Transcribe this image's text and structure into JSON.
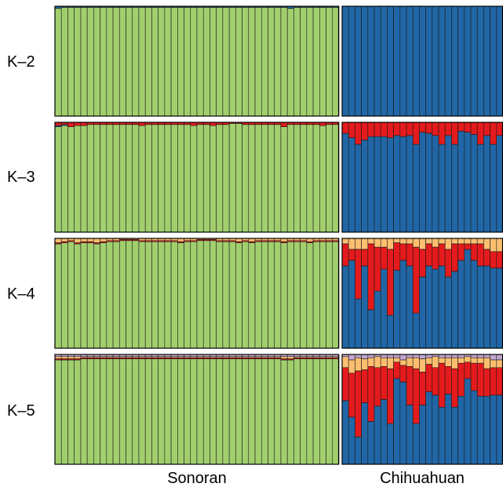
{
  "chart_data": {
    "type": "bar",
    "stacked": true,
    "normalized": true,
    "ylim": [
      0,
      1
    ],
    "colors": {
      "cluster1": "#a2cf6e",
      "cluster2": "#2166a6",
      "cluster3": "#e41a1c",
      "cluster4": "#fdbf6f",
      "cluster5": "#c2a5cf",
      "bar_stroke": "#1a1a1a",
      "panel_border": "#000000"
    },
    "groups": [
      {
        "label": "Sonoran",
        "n": 44
      },
      {
        "label": "Chihuahuan",
        "n": 25
      }
    ],
    "panels": [
      {
        "label": "K–2",
        "sonoran": {
          "blue": [
            0.02,
            0.01,
            0.01,
            0.01,
            0.01,
            0.01,
            0.01,
            0.01,
            0.01,
            0.01,
            0.01,
            0.01,
            0.01,
            0.01,
            0.01,
            0.01,
            0.01,
            0.01,
            0.01,
            0.01,
            0.01,
            0.01,
            0.01,
            0.01,
            0.01,
            0.01,
            0.01,
            0.01,
            0.01,
            0.01,
            0.01,
            0.01,
            0.01,
            0.01,
            0.01,
            0.01,
            0.02,
            0.01,
            0.01,
            0.01,
            0.01,
            0.01,
            0.01,
            0.01
          ]
        },
        "chihuahuan": {
          "green": [
            0,
            0,
            0,
            0,
            0,
            0,
            0,
            0,
            0,
            0,
            0,
            0,
            0,
            0,
            0,
            0,
            0,
            0,
            0,
            0,
            0,
            0,
            0,
            0,
            0
          ]
        }
      },
      {
        "label": "K–3",
        "sonoran": {
          "red": [
            0.03,
            0.02,
            0.04,
            0.03,
            0.03,
            0.02,
            0.02,
            0.02,
            0.02,
            0.02,
            0.02,
            0.02,
            0.02,
            0.03,
            0.02,
            0.02,
            0.02,
            0.02,
            0.02,
            0.02,
            0.02,
            0.03,
            0.02,
            0.02,
            0.03,
            0.02,
            0.02,
            0.01,
            0.01,
            0.02,
            0.02,
            0.02,
            0.02,
            0.02,
            0.02,
            0.04,
            0.02,
            0.02,
            0.02,
            0.02,
            0.02,
            0.03,
            0.02,
            0.02
          ],
          "blue": [
            0.01,
            0.01,
            0,
            0,
            0,
            0,
            0,
            0,
            0,
            0,
            0,
            0,
            0,
            0,
            0,
            0,
            0,
            0,
            0,
            0,
            0,
            0,
            0,
            0,
            0,
            0,
            0,
            0,
            0,
            0,
            0,
            0,
            0,
            0,
            0,
            0,
            0,
            0,
            0,
            0,
            0,
            0,
            0,
            0
          ]
        },
        "chihuahuan": {
          "red": [
            0.1,
            0.14,
            0.2,
            0.16,
            0.13,
            0.13,
            0.13,
            0.14,
            0.12,
            0.13,
            0.12,
            0.2,
            0.09,
            0.1,
            0.12,
            0.2,
            0.12,
            0.2,
            0.08,
            0.09,
            0.11,
            0.2,
            0.12,
            0.2,
            0.12
          ],
          "green": [
            0,
            0,
            0,
            0,
            0,
            0,
            0,
            0,
            0,
            0,
            0,
            0,
            0,
            0,
            0,
            0,
            0,
            0,
            0,
            0,
            0,
            0,
            0,
            0,
            0
          ]
        }
      },
      {
        "label": "K–4",
        "sonoran": {
          "orange": [
            0.04,
            0.03,
            0.02,
            0.04,
            0.03,
            0.03,
            0.04,
            0.03,
            0.02,
            0.02,
            0.01,
            0.01,
            0.01,
            0.02,
            0.02,
            0.02,
            0.02,
            0.02,
            0.02,
            0.03,
            0.02,
            0.02,
            0.01,
            0.01,
            0.01,
            0.02,
            0.02,
            0.02,
            0.03,
            0.02,
            0.03,
            0.02,
            0.02,
            0.02,
            0.02,
            0.03,
            0.02,
            0.02,
            0.02,
            0.03,
            0.02,
            0.02,
            0.02,
            0.02
          ],
          "red": [
            0.01,
            0.01,
            0.01,
            0.01,
            0.01,
            0.01,
            0.01,
            0.01,
            0.01,
            0.01,
            0.01,
            0.01,
            0.01,
            0.01,
            0.01,
            0.01,
            0.01,
            0.01,
            0.01,
            0.01,
            0.01,
            0.01,
            0.01,
            0.01,
            0.01,
            0.01,
            0.01,
            0.01,
            0.01,
            0.01,
            0.01,
            0.01,
            0.01,
            0.01,
            0.01,
            0.01,
            0.01,
            0.01,
            0.01,
            0.01,
            0.01,
            0.01,
            0.01,
            0.01
          ],
          "blue": [
            0,
            0,
            0,
            0,
            0,
            0,
            0,
            0,
            0,
            0,
            0,
            0,
            0,
            0,
            0,
            0,
            0,
            0,
            0,
            0,
            0,
            0,
            0,
            0,
            0,
            0,
            0,
            0,
            0,
            0,
            0,
            0,
            0,
            0,
            0,
            0,
            0,
            0,
            0,
            0,
            0,
            0,
            0,
            0
          ]
        },
        "chihuahuan": {
          "orange": [
            0.05,
            0.1,
            0.1,
            0.1,
            0.05,
            0.08,
            0.08,
            0.1,
            0.04,
            0.05,
            0.05,
            0.08,
            0.1,
            0.05,
            0.08,
            0.05,
            0.1,
            0.05,
            0.05,
            0.05,
            0.05,
            0.05,
            0.1,
            0.12,
            0.12
          ],
          "red": [
            0.2,
            0.1,
            0.45,
            0.15,
            0.6,
            0.4,
            0.2,
            0.6,
            0.25,
            0.15,
            0.2,
            0.6,
            0.25,
            0.2,
            0.2,
            0.2,
            0.25,
            0.25,
            0.15,
            0.05,
            0.15,
            0.2,
            0.15,
            0.15,
            0.15
          ],
          "green": [
            0,
            0,
            0,
            0,
            0,
            0,
            0,
            0,
            0,
            0,
            0,
            0,
            0,
            0,
            0,
            0,
            0,
            0,
            0,
            0,
            0,
            0,
            0,
            0,
            0
          ]
        }
      },
      {
        "label": "K–5",
        "sonoran": {
          "purple": [
            0.02,
            0.02,
            0.02,
            0.02,
            0.02,
            0.02,
            0.02,
            0.02,
            0.02,
            0.02,
            0.02,
            0.02,
            0.02,
            0.02,
            0.02,
            0.02,
            0.02,
            0.02,
            0.02,
            0.02,
            0.02,
            0.02,
            0.02,
            0.02,
            0.02,
            0.02,
            0.02,
            0.02,
            0.02,
            0.02,
            0.02,
            0.02,
            0.02,
            0.02,
            0.02,
            0.02,
            0.02,
            0.02,
            0.02,
            0.02,
            0.02,
            0.02,
            0.02,
            0.02
          ],
          "orange": [
            0.02,
            0.02,
            0.02,
            0.02,
            0.01,
            0.01,
            0.01,
            0.01,
            0.01,
            0.01,
            0.01,
            0.01,
            0.01,
            0.01,
            0.01,
            0.01,
            0.01,
            0.01,
            0.01,
            0.01,
            0.01,
            0.01,
            0.01,
            0.01,
            0.01,
            0.01,
            0.01,
            0.01,
            0.01,
            0.01,
            0.01,
            0.01,
            0.01,
            0.01,
            0.01,
            0.02,
            0.02,
            0.01,
            0.01,
            0.01,
            0.01,
            0.01,
            0.01,
            0.01
          ],
          "red": [
            0.01,
            0.01,
            0.01,
            0.01,
            0.01,
            0.01,
            0.01,
            0.01,
            0.01,
            0.01,
            0.01,
            0.01,
            0.01,
            0.01,
            0.01,
            0.01,
            0.01,
            0.01,
            0.01,
            0.01,
            0.01,
            0.01,
            0.01,
            0.01,
            0.01,
            0.01,
            0.01,
            0.01,
            0.01,
            0.01,
            0.01,
            0.01,
            0.01,
            0.01,
            0.01,
            0.01,
            0.01,
            0.01,
            0.01,
            0.01,
            0.01,
            0.01,
            0.01,
            0.01
          ],
          "blue": [
            0,
            0,
            0,
            0,
            0,
            0,
            0,
            0,
            0,
            0,
            0,
            0,
            0,
            0,
            0,
            0,
            0,
            0,
            0,
            0,
            0,
            0,
            0,
            0,
            0,
            0,
            0,
            0,
            0,
            0,
            0,
            0,
            0,
            0,
            0,
            0,
            0,
            0,
            0,
            0,
            0,
            0,
            0,
            0
          ]
        },
        "chihuahuan": {
          "purple": [
            0.02,
            0.05,
            0.03,
            0.04,
            0.03,
            0.02,
            0.03,
            0.03,
            0.03,
            0.05,
            0.03,
            0.03,
            0.04,
            0.03,
            0.02,
            0.03,
            0.03,
            0.03,
            0.03,
            0.02,
            0.03,
            0.03,
            0.03,
            0.05,
            0.05
          ],
          "orange": [
            0.1,
            0.12,
            0.12,
            0.1,
            0.08,
            0.1,
            0.08,
            0.1,
            0.04,
            0.05,
            0.08,
            0.1,
            0.12,
            0.06,
            0.1,
            0.05,
            0.08,
            0.1,
            0.05,
            0.05,
            0.05,
            0.05,
            0.1,
            0.07,
            0.07
          ],
          "red": [
            0.3,
            0.4,
            0.6,
            0.3,
            0.5,
            0.35,
            0.3,
            0.5,
            0.15,
            0.15,
            0.35,
            0.5,
            0.3,
            0.25,
            0.25,
            0.4,
            0.25,
            0.35,
            0.3,
            0.15,
            0.25,
            0.3,
            0.25,
            0.25,
            0.25
          ],
          "green": [
            0,
            0,
            0,
            0,
            0,
            0,
            0,
            0,
            0,
            0,
            0,
            0,
            0,
            0,
            0,
            0,
            0,
            0,
            0,
            0,
            0,
            0,
            0,
            0,
            0
          ]
        }
      }
    ]
  }
}
